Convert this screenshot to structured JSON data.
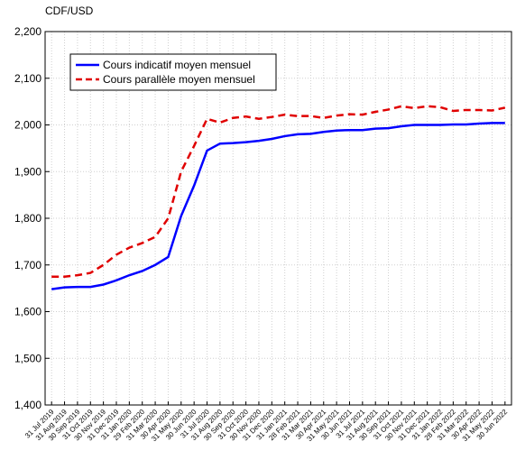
{
  "chart_data": {
    "type": "line",
    "y_label": "CDF/USD",
    "categories": [
      "31 Jul 2019",
      "31 Aug 2019",
      "30 Sep 2019",
      "31 Oct 2019",
      "30 Nov 2019",
      "31 Dec 2019",
      "31 Jan 2020",
      "29 Feb 2020",
      "31 Mar 2020",
      "30 Apr 2020",
      "31 May 2020",
      "30 Jun 2020",
      "31 Jul 2020",
      "31 Aug 2020",
      "30 Sep 2020",
      "31 Oct 2020",
      "30 Nov 2020",
      "31 Dec 2020",
      "31 Jan 2021",
      "28 Feb 2021",
      "31 Mar 2021",
      "30 Apr 2021",
      "31 May 2021",
      "30 Jun 2021",
      "31 Jul 2021",
      "31 Aug 2021",
      "30 Sep 2021",
      "31 Oct 2021",
      "30 Nov 2021",
      "31 Dec 2021",
      "31 Jan 2022",
      "28 Feb 2022",
      "31 Mar 2022",
      "30 Apr 2022",
      "31 May 2022",
      "30 Jun 2022"
    ],
    "series": [
      {
        "name": "Cours indicatif moyen mensuel",
        "color": "#0000ff",
        "dash": "solid",
        "values": [
          1648,
          1652,
          1653,
          1653,
          1658,
          1667,
          1678,
          1687,
          1700,
          1717,
          1805,
          1870,
          1945,
          1960,
          1961,
          1963,
          1966,
          1970,
          1976,
          1980,
          1981,
          1985,
          1988,
          1989,
          1989,
          1992,
          1993,
          1997,
          2000,
          2000,
          2000,
          2001,
          2001,
          2003,
          2004,
          2004
        ]
      },
      {
        "name": "Cours parallèle moyen mensuel",
        "color": "#e00000",
        "dash": "dashed",
        "values": [
          1675,
          1675,
          1678,
          1683,
          1700,
          1722,
          1737,
          1747,
          1760,
          1800,
          1900,
          1955,
          2013,
          2005,
          2015,
          2018,
          2013,
          2017,
          2022,
          2019,
          2019,
          2015,
          2020,
          2023,
          2022,
          2028,
          2033,
          2040,
          2036,
          2040,
          2038,
          2030,
          2032,
          2032,
          2031,
          2037
        ]
      }
    ],
    "ylim": [
      1400,
      2200
    ],
    "yticks": [
      {
        "value": 1400,
        "label": "1,400"
      },
      {
        "value": 1500,
        "label": "1,500"
      },
      {
        "value": 1600,
        "label": "1,600"
      },
      {
        "value": 1700,
        "label": "1,700"
      },
      {
        "value": 1800,
        "label": "1,800"
      },
      {
        "value": 1900,
        "label": "1,900"
      },
      {
        "value": 2000,
        "label": "2,000"
      },
      {
        "value": 2100,
        "label": "2,100"
      },
      {
        "value": 2200,
        "label": "2,200"
      }
    ],
    "grid": true,
    "legend": "upper left"
  }
}
